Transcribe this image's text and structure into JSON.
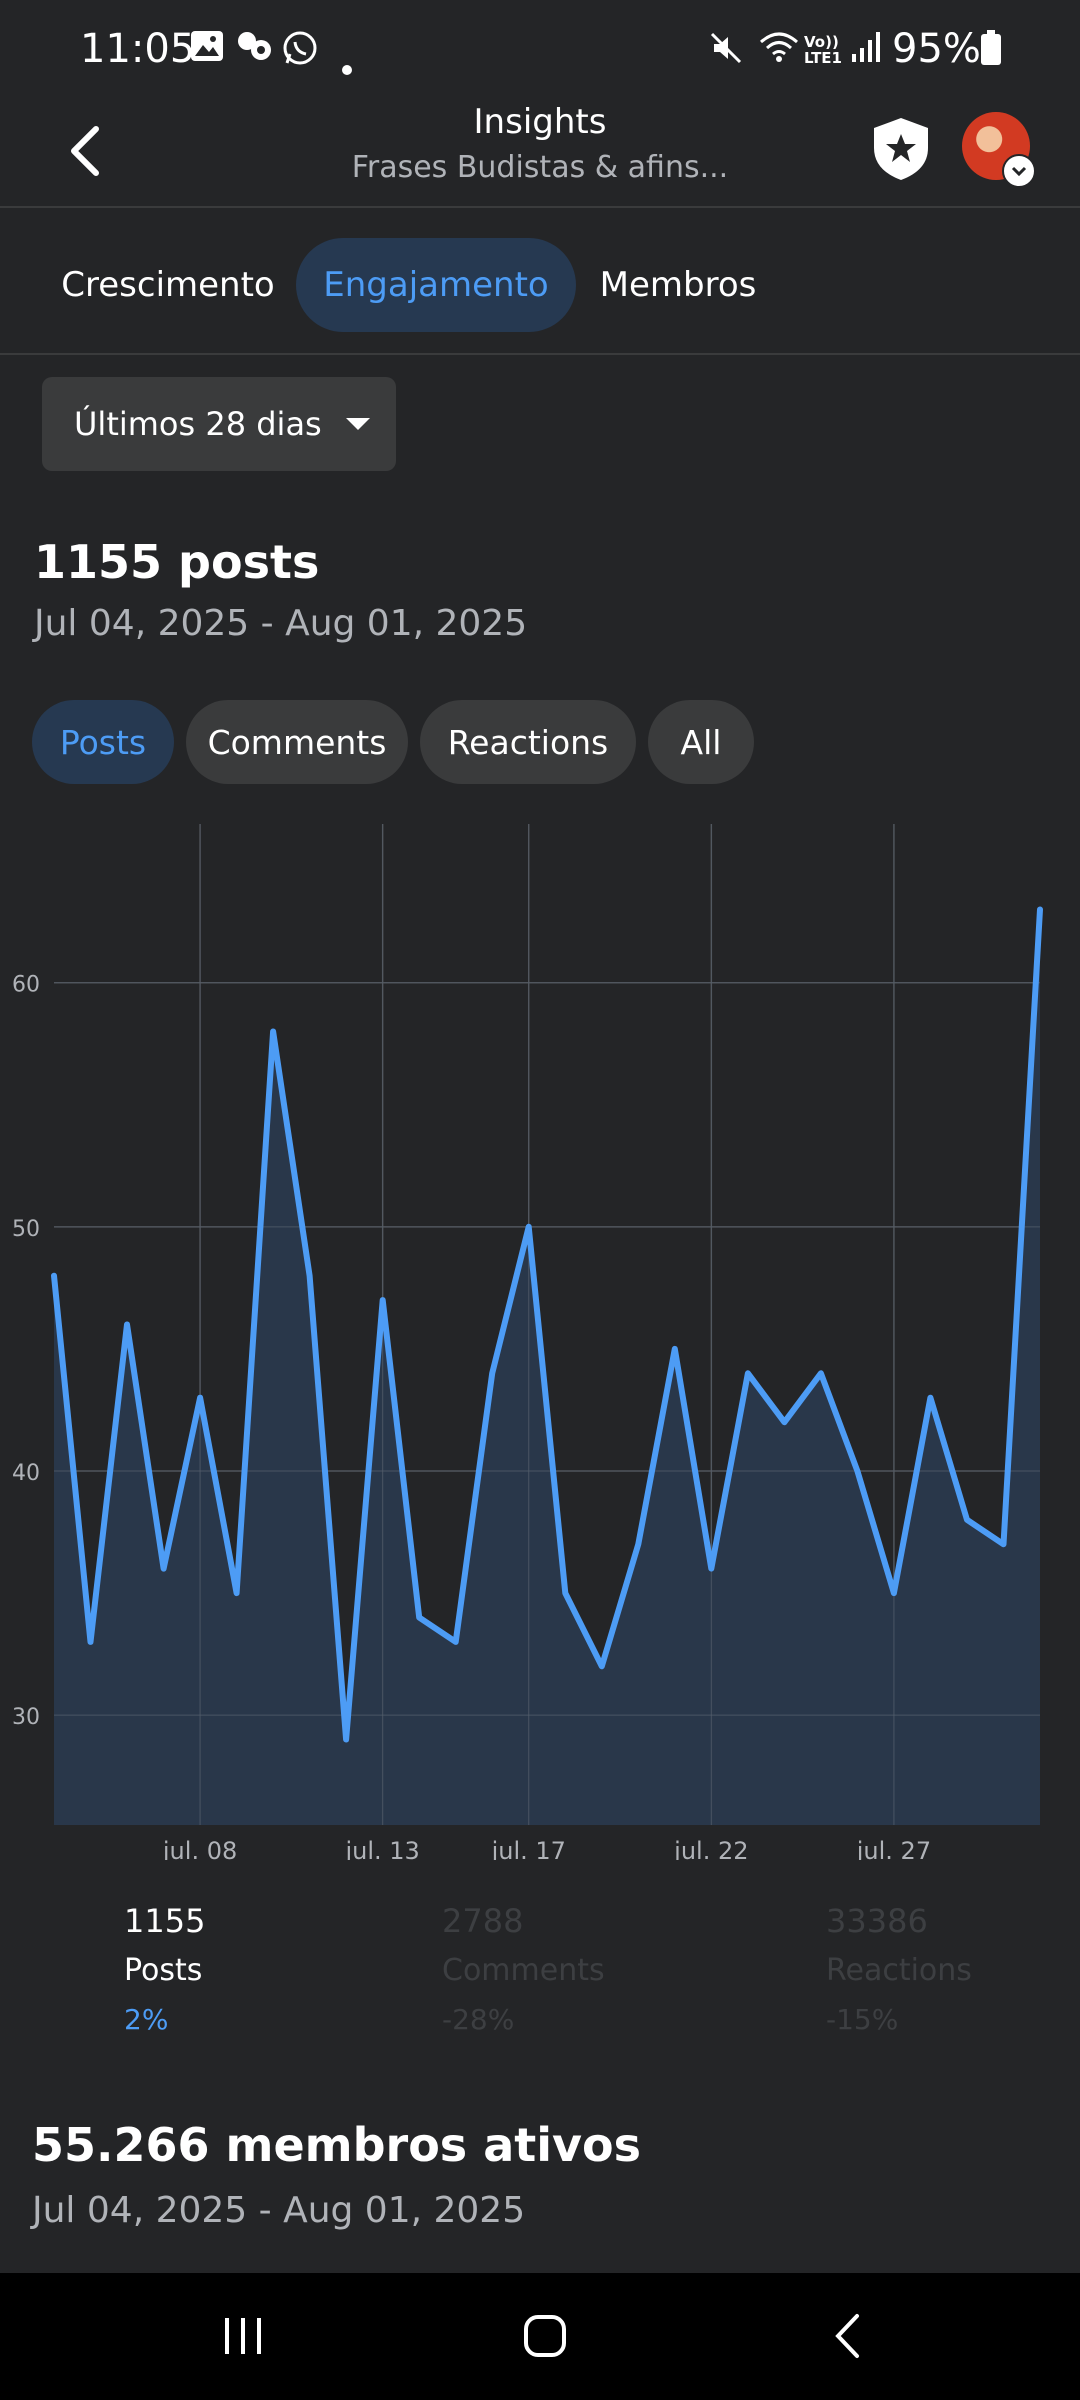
{
  "status_bar": {
    "time": "11:05",
    "battery": "95%",
    "left_icons": [
      "image-icon",
      "bubbles-icon",
      "whatsapp-icon",
      "dot-icon"
    ],
    "right_icons": [
      "mute-icon",
      "wifi-icon",
      "volte-icon",
      "signal-icon",
      "battery-icon"
    ],
    "volte_label": "Vo)) LTE1"
  },
  "header": {
    "title": "Insights",
    "subtitle": "Frases Budistas & afins..."
  },
  "tabs": [
    {
      "label": "Crescimento",
      "active": false
    },
    {
      "label": "Engajamento",
      "active": true
    },
    {
      "label": "Membros",
      "active": false
    }
  ],
  "range_dropdown": {
    "label": "Últimos 28 dias"
  },
  "summary": {
    "title": "1155 posts",
    "date_range": "Jul 04, 2025 - Aug 01, 2025"
  },
  "metric_pills": [
    {
      "label": "Posts",
      "active": true
    },
    {
      "label": "Comments",
      "active": false
    },
    {
      "label": "Reactions",
      "active": false
    },
    {
      "label": "All",
      "active": false
    }
  ],
  "chart_data": {
    "type": "area",
    "x": [
      "jul. 04",
      "jul. 05",
      "jul. 06",
      "jul. 07",
      "jul. 08",
      "jul. 09",
      "jul. 10",
      "jul. 11",
      "jul. 12",
      "jul. 13",
      "jul. 14",
      "jul. 15",
      "jul. 16",
      "jul. 17",
      "jul. 18",
      "jul. 19",
      "jul. 20",
      "jul. 21",
      "jul. 22",
      "jul. 23",
      "jul. 24",
      "jul. 25",
      "jul. 26",
      "jul. 27",
      "jul. 28",
      "jul. 29",
      "jul. 30",
      "jul. 31"
    ],
    "series": [
      {
        "values": [
          48,
          33,
          46,
          36,
          43,
          35,
          58,
          48,
          29,
          47,
          34,
          33,
          44,
          50,
          35,
          32,
          37,
          45,
          36,
          44,
          42,
          44,
          40,
          35,
          43,
          38,
          37,
          63
        ]
      }
    ],
    "x_tick_labels": [
      "jul. 08",
      "jul. 13",
      "jul. 17",
      "jul. 22",
      "jul. 27"
    ],
    "y_ticks": [
      30,
      40,
      50,
      60
    ],
    "ylim": [
      25.5,
      66.5
    ],
    "grid": true,
    "line_color": "#4d9cf5",
    "fill_color": "#2a3a4f"
  },
  "stats": [
    {
      "value": "1155",
      "label": "Posts",
      "change": "2%",
      "active": true
    },
    {
      "value": "2788",
      "label": "Comments",
      "change": "-28%",
      "active": false
    },
    {
      "value": "33386",
      "label": "Reactions",
      "change": "-15%",
      "active": false
    }
  ],
  "members": {
    "title": "55.266 membros ativos",
    "date_range": "Jul 04, 2025 - Aug 01, 2025"
  },
  "colors": {
    "background": "#242527",
    "accent": "#4d9cf5",
    "active_tab_bg": "#263951"
  }
}
